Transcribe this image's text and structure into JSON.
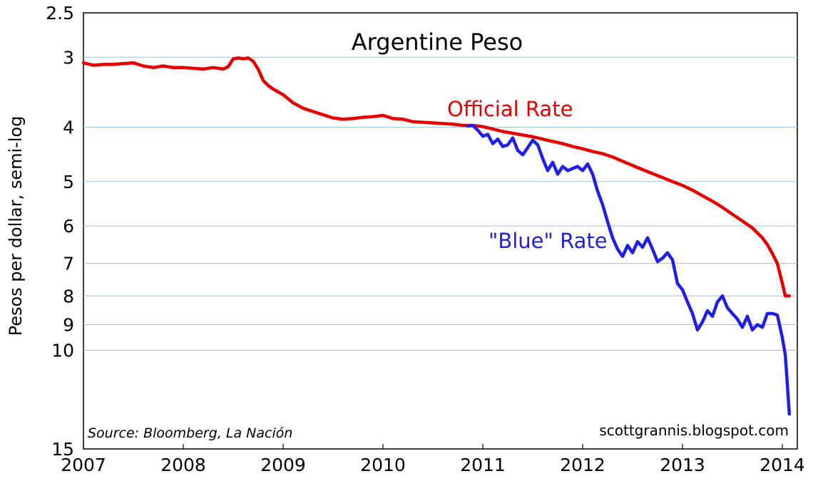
{
  "chart_data": {
    "type": "line",
    "title": "Argentine Peso",
    "ylabel": "Pesos per dollar, semi-log",
    "xlabel": "",
    "y_scale": "log",
    "y_inverted": true,
    "ylim": [
      2.5,
      15
    ],
    "xlim": [
      2007,
      2014.15
    ],
    "grid": true,
    "x_ticks": [
      "2007",
      "2008",
      "2009",
      "2010",
      "2011",
      "2012",
      "2013",
      "2014"
    ],
    "y_ticks": [
      {
        "value": 2.5,
        "label": "2.5"
      },
      {
        "value": 3,
        "label": "3"
      },
      {
        "value": 4,
        "label": "4"
      },
      {
        "value": 5,
        "label": "5"
      },
      {
        "value": 6,
        "label": "6"
      },
      {
        "value": 7,
        "label": "7"
      },
      {
        "value": 8,
        "label": "8"
      },
      {
        "value": 9,
        "label": "9"
      },
      {
        "value": 10,
        "label": "10"
      },
      {
        "value": 15,
        "label": "15"
      }
    ],
    "series": [
      {
        "name": "Official Rate",
        "color": "#e60000",
        "x": [
          2007.0,
          2007.1,
          2007.2,
          2007.3,
          2007.4,
          2007.5,
          2007.6,
          2007.7,
          2007.8,
          2007.9,
          2008.0,
          2008.1,
          2008.2,
          2008.3,
          2008.4,
          2008.45,
          2008.5,
          2008.55,
          2008.6,
          2008.65,
          2008.7,
          2008.75,
          2008.8,
          2008.85,
          2008.9,
          2009.0,
          2009.1,
          2009.2,
          2009.3,
          2009.4,
          2009.5,
          2009.6,
          2009.7,
          2009.8,
          2009.9,
          2010.0,
          2010.1,
          2010.2,
          2010.3,
          2010.4,
          2010.5,
          2010.6,
          2010.7,
          2010.8,
          2010.9,
          2011.0,
          2011.1,
          2011.2,
          2011.3,
          2011.4,
          2011.5,
          2011.6,
          2011.7,
          2011.8,
          2011.9,
          2012.0,
          2012.1,
          2012.2,
          2012.3,
          2012.4,
          2012.5,
          2012.6,
          2012.7,
          2012.8,
          2012.9,
          2013.0,
          2013.1,
          2013.2,
          2013.3,
          2013.4,
          2013.5,
          2013.6,
          2013.7,
          2013.8,
          2013.85,
          2013.9,
          2013.95,
          2014.0,
          2014.03,
          2014.05,
          2014.06,
          2014.07
        ],
        "values": [
          3.07,
          3.1,
          3.09,
          3.09,
          3.08,
          3.07,
          3.11,
          3.13,
          3.11,
          3.13,
          3.13,
          3.14,
          3.15,
          3.13,
          3.15,
          3.12,
          3.02,
          3.01,
          3.02,
          3.01,
          3.05,
          3.15,
          3.3,
          3.37,
          3.42,
          3.5,
          3.62,
          3.7,
          3.75,
          3.8,
          3.85,
          3.87,
          3.86,
          3.84,
          3.83,
          3.81,
          3.86,
          3.87,
          3.91,
          3.92,
          3.93,
          3.94,
          3.95,
          3.97,
          3.97,
          3.99,
          4.03,
          4.07,
          4.1,
          4.13,
          4.16,
          4.2,
          4.24,
          4.28,
          4.33,
          4.37,
          4.42,
          4.46,
          4.52,
          4.6,
          4.68,
          4.76,
          4.84,
          4.92,
          5.0,
          5.08,
          5.18,
          5.3,
          5.42,
          5.56,
          5.72,
          5.88,
          6.05,
          6.3,
          6.48,
          6.72,
          7.0,
          7.6,
          8.0,
          8.0,
          8.0,
          8.0
        ]
      },
      {
        "name": "\"Blue\" Rate",
        "color": "#1f1fe6",
        "x": [
          2010.85,
          2010.9,
          2010.95,
          2011.0,
          2011.05,
          2011.1,
          2011.15,
          2011.2,
          2011.25,
          2011.3,
          2011.35,
          2011.4,
          2011.45,
          2011.5,
          2011.55,
          2011.6,
          2011.65,
          2011.7,
          2011.75,
          2011.8,
          2011.85,
          2011.9,
          2011.95,
          2012.0,
          2012.05,
          2012.1,
          2012.15,
          2012.2,
          2012.25,
          2012.3,
          2012.35,
          2012.4,
          2012.45,
          2012.5,
          2012.55,
          2012.6,
          2012.65,
          2012.7,
          2012.75,
          2012.8,
          2012.85,
          2012.9,
          2012.95,
          2013.0,
          2013.05,
          2013.1,
          2013.15,
          2013.2,
          2013.25,
          2013.3,
          2013.35,
          2013.4,
          2013.45,
          2013.5,
          2013.55,
          2013.6,
          2013.65,
          2013.7,
          2013.75,
          2013.8,
          2013.85,
          2013.9,
          2013.95,
          2014.0,
          2014.03,
          2014.05,
          2014.07
        ],
        "values": [
          3.98,
          3.97,
          4.05,
          4.15,
          4.12,
          4.28,
          4.2,
          4.33,
          4.3,
          4.18,
          4.4,
          4.48,
          4.35,
          4.22,
          4.3,
          4.55,
          4.78,
          4.62,
          4.85,
          4.7,
          4.78,
          4.74,
          4.7,
          4.78,
          4.65,
          4.85,
          5.2,
          5.5,
          5.9,
          6.3,
          6.6,
          6.8,
          6.5,
          6.7,
          6.4,
          6.55,
          6.3,
          6.6,
          6.95,
          6.85,
          6.7,
          6.9,
          7.6,
          7.8,
          8.2,
          8.6,
          9.2,
          8.9,
          8.5,
          8.7,
          8.2,
          8.0,
          8.4,
          8.6,
          8.8,
          9.1,
          8.7,
          9.2,
          9.0,
          9.1,
          8.6,
          8.6,
          8.65,
          9.5,
          10.2,
          11.5,
          13.0
        ]
      }
    ],
    "annotations": [
      {
        "text": "Official Rate",
        "color": "#e60000"
      },
      {
        "text": "\"Blue\" Rate",
        "color": "#1f1fe6"
      }
    ],
    "source": "Source: Bloomberg, La Nación",
    "credit": "scottgrannis.blogspot.com"
  }
}
